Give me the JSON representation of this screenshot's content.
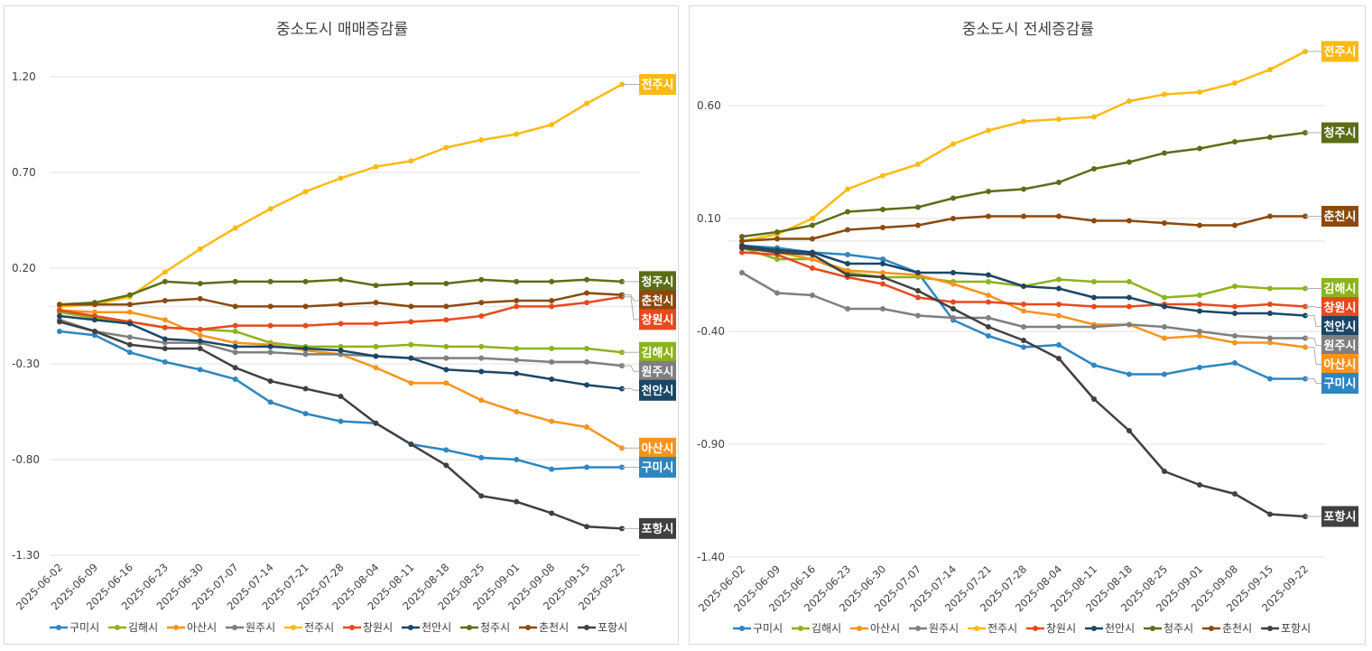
{
  "chart_data": [
    {
      "type": "line",
      "title": "중소도시 매매증감률",
      "xlabel": "",
      "ylabel": "",
      "ylim": [
        -1.3,
        1.2
      ],
      "yticks": [
        1.2,
        0.7,
        0.2,
        -0.3,
        -0.8,
        -1.3
      ],
      "ytick_labels": [
        "1.20",
        "0.70",
        "0.20",
        "-0.30",
        "-0.80",
        "-1.30"
      ],
      "grid": true,
      "legend": "bottom",
      "end_labels": true,
      "categories": [
        "2025-06-02",
        "2025-06-09",
        "2025-06-16",
        "2025-06-23",
        "2025-06-30",
        "2025-07-07",
        "2025-07-14",
        "2025-07-21",
        "2025-07-28",
        "2025-08-04",
        "2025-08-11",
        "2025-08-18",
        "2025-08-25",
        "2025-09-01",
        "2025-09-08",
        "2025-09-15",
        "2025-09-22"
      ],
      "series": [
        {
          "name": "구미시",
          "color": "#2E86C1",
          "values": [
            -0.13,
            -0.15,
            -0.24,
            -0.29,
            -0.33,
            -0.38,
            -0.5,
            -0.56,
            -0.6,
            -0.61,
            -0.72,
            -0.75,
            -0.79,
            -0.8,
            -0.85,
            -0.84,
            -0.84
          ]
        },
        {
          "name": "김해시",
          "color": "#8DB31B",
          "values": [
            -0.03,
            -0.06,
            -0.08,
            -0.11,
            -0.12,
            -0.13,
            -0.19,
            -0.21,
            -0.21,
            -0.21,
            -0.2,
            -0.21,
            -0.21,
            -0.22,
            -0.22,
            -0.22,
            -0.24
          ]
        },
        {
          "name": "아산시",
          "color": "#F7941D",
          "values": [
            -0.02,
            -0.03,
            -0.03,
            -0.07,
            -0.15,
            -0.19,
            -0.2,
            -0.23,
            -0.25,
            -0.32,
            -0.4,
            -0.4,
            -0.49,
            -0.55,
            -0.6,
            -0.63,
            -0.74
          ]
        },
        {
          "name": "원주시",
          "color": "#7F7F7F",
          "values": [
            -0.07,
            -0.13,
            -0.16,
            -0.19,
            -0.19,
            -0.24,
            -0.24,
            -0.25,
            -0.25,
            -0.26,
            -0.27,
            -0.27,
            -0.27,
            -0.28,
            -0.29,
            -0.29,
            -0.31
          ]
        },
        {
          "name": "전주시",
          "color": "#FDBA12",
          "values": [
            0.0,
            0.01,
            0.05,
            0.18,
            0.3,
            0.41,
            0.51,
            0.6,
            0.67,
            0.73,
            0.76,
            0.83,
            0.87,
            0.9,
            0.95,
            1.06,
            1.16
          ]
        },
        {
          "name": "창원시",
          "color": "#E8491D",
          "values": [
            -0.02,
            -0.05,
            -0.08,
            -0.11,
            -0.12,
            -0.1,
            -0.1,
            -0.1,
            -0.09,
            -0.09,
            -0.08,
            -0.07,
            -0.05,
            0.0,
            0.0,
            0.02,
            0.05
          ]
        },
        {
          "name": "천안시",
          "color": "#1B4765",
          "values": [
            -0.05,
            -0.07,
            -0.09,
            -0.17,
            -0.18,
            -0.21,
            -0.21,
            -0.22,
            -0.23,
            -0.26,
            -0.27,
            -0.33,
            -0.34,
            -0.35,
            -0.38,
            -0.41,
            -0.43
          ]
        },
        {
          "name": "청주시",
          "color": "#5B6E17",
          "values": [
            0.01,
            0.02,
            0.06,
            0.13,
            0.12,
            0.13,
            0.13,
            0.13,
            0.14,
            0.11,
            0.12,
            0.12,
            0.14,
            0.13,
            0.13,
            0.14,
            0.13
          ]
        },
        {
          "name": "춘천시",
          "color": "#8B4A0B",
          "values": [
            0.01,
            0.01,
            0.01,
            0.03,
            0.04,
            0.0,
            0.0,
            0.0,
            0.01,
            0.02,
            0.0,
            0.0,
            0.02,
            0.03,
            0.03,
            0.07,
            0.06
          ]
        },
        {
          "name": "포항시",
          "color": "#404040",
          "values": [
            -0.08,
            -0.13,
            -0.2,
            -0.22,
            -0.22,
            -0.32,
            -0.39,
            -0.43,
            -0.47,
            -0.61,
            -0.72,
            -0.83,
            -0.99,
            -1.02,
            -1.08,
            -1.15,
            -1.16
          ]
        }
      ]
    },
    {
      "type": "line",
      "title": "중소도시 전세증감률",
      "xlabel": "",
      "ylabel": "",
      "ylim": [
        -1.4,
        1.05
      ],
      "yticks": [
        0.6,
        0.1,
        -0.4,
        -0.9,
        -1.4
      ],
      "ytick_labels": [
        "0.60",
        "0.10",
        "-0.40",
        "-0.90",
        "-1.40"
      ],
      "grid": true,
      "legend": "bottom",
      "end_labels": true,
      "categories": [
        "2025-06-02",
        "2025-06-09",
        "2025-06-16",
        "2025-06-23",
        "2025-06-30",
        "2025-07-07",
        "2025-07-14",
        "2025-07-21",
        "2025-07-28",
        "2025-08-04",
        "2025-08-11",
        "2025-08-18",
        "2025-08-25",
        "2025-09-01",
        "2025-09-08",
        "2025-09-15",
        "2025-09-22"
      ],
      "series": [
        {
          "name": "구미시",
          "color": "#2E86C1",
          "values": [
            -0.02,
            -0.03,
            -0.05,
            -0.06,
            -0.08,
            -0.14,
            -0.35,
            -0.42,
            -0.47,
            -0.46,
            -0.55,
            -0.59,
            -0.59,
            -0.56,
            -0.54,
            -0.61,
            -0.61
          ]
        },
        {
          "name": "김해시",
          "color": "#8DB31B",
          "values": [
            -0.03,
            -0.08,
            -0.08,
            -0.14,
            -0.16,
            -0.16,
            -0.18,
            -0.18,
            -0.2,
            -0.17,
            -0.18,
            -0.18,
            -0.25,
            -0.24,
            -0.2,
            -0.21,
            -0.21
          ]
        },
        {
          "name": "아산시",
          "color": "#F7941D",
          "values": [
            -0.02,
            -0.05,
            -0.08,
            -0.13,
            -0.14,
            -0.15,
            -0.19,
            -0.24,
            -0.31,
            -0.33,
            -0.37,
            -0.37,
            -0.43,
            -0.42,
            -0.45,
            -0.45,
            -0.47
          ]
        },
        {
          "name": "원주시",
          "color": "#7F7F7F",
          "values": [
            -0.14,
            -0.23,
            -0.24,
            -0.3,
            -0.3,
            -0.33,
            -0.34,
            -0.34,
            -0.38,
            -0.38,
            -0.38,
            -0.37,
            -0.38,
            -0.4,
            -0.42,
            -0.43,
            -0.43
          ]
        },
        {
          "name": "전주시",
          "color": "#FDBA12",
          "values": [
            0.0,
            0.03,
            0.1,
            0.23,
            0.29,
            0.34,
            0.43,
            0.49,
            0.53,
            0.54,
            0.55,
            0.62,
            0.65,
            0.66,
            0.7,
            0.76,
            0.84
          ]
        },
        {
          "name": "창원시",
          "color": "#E8491D",
          "values": [
            -0.05,
            -0.06,
            -0.12,
            -0.16,
            -0.19,
            -0.25,
            -0.27,
            -0.27,
            -0.28,
            -0.28,
            -0.29,
            -0.29,
            -0.28,
            -0.28,
            -0.29,
            -0.28,
            -0.29
          ]
        },
        {
          "name": "천안시",
          "color": "#1B4765",
          "values": [
            -0.02,
            -0.04,
            -0.05,
            -0.1,
            -0.1,
            -0.14,
            -0.14,
            -0.15,
            -0.2,
            -0.21,
            -0.25,
            -0.25,
            -0.29,
            -0.31,
            -0.32,
            -0.32,
            -0.33
          ]
        },
        {
          "name": "청주시",
          "color": "#5B6E17",
          "values": [
            0.02,
            0.04,
            0.07,
            0.13,
            0.14,
            0.15,
            0.19,
            0.22,
            0.23,
            0.26,
            0.32,
            0.35,
            0.39,
            0.41,
            0.44,
            0.46,
            0.48
          ]
        },
        {
          "name": "춘천시",
          "color": "#8B4A0B",
          "values": [
            0.0,
            0.01,
            0.01,
            0.05,
            0.06,
            0.07,
            0.1,
            0.11,
            0.11,
            0.11,
            0.09,
            0.09,
            0.08,
            0.07,
            0.07,
            0.11,
            0.11
          ]
        },
        {
          "name": "포항시",
          "color": "#404040",
          "values": [
            -0.03,
            -0.05,
            -0.06,
            -0.15,
            -0.16,
            -0.22,
            -0.3,
            -0.38,
            -0.44,
            -0.52,
            -0.7,
            -0.84,
            -1.02,
            -1.08,
            -1.12,
            -1.21,
            -1.22
          ]
        }
      ]
    }
  ]
}
